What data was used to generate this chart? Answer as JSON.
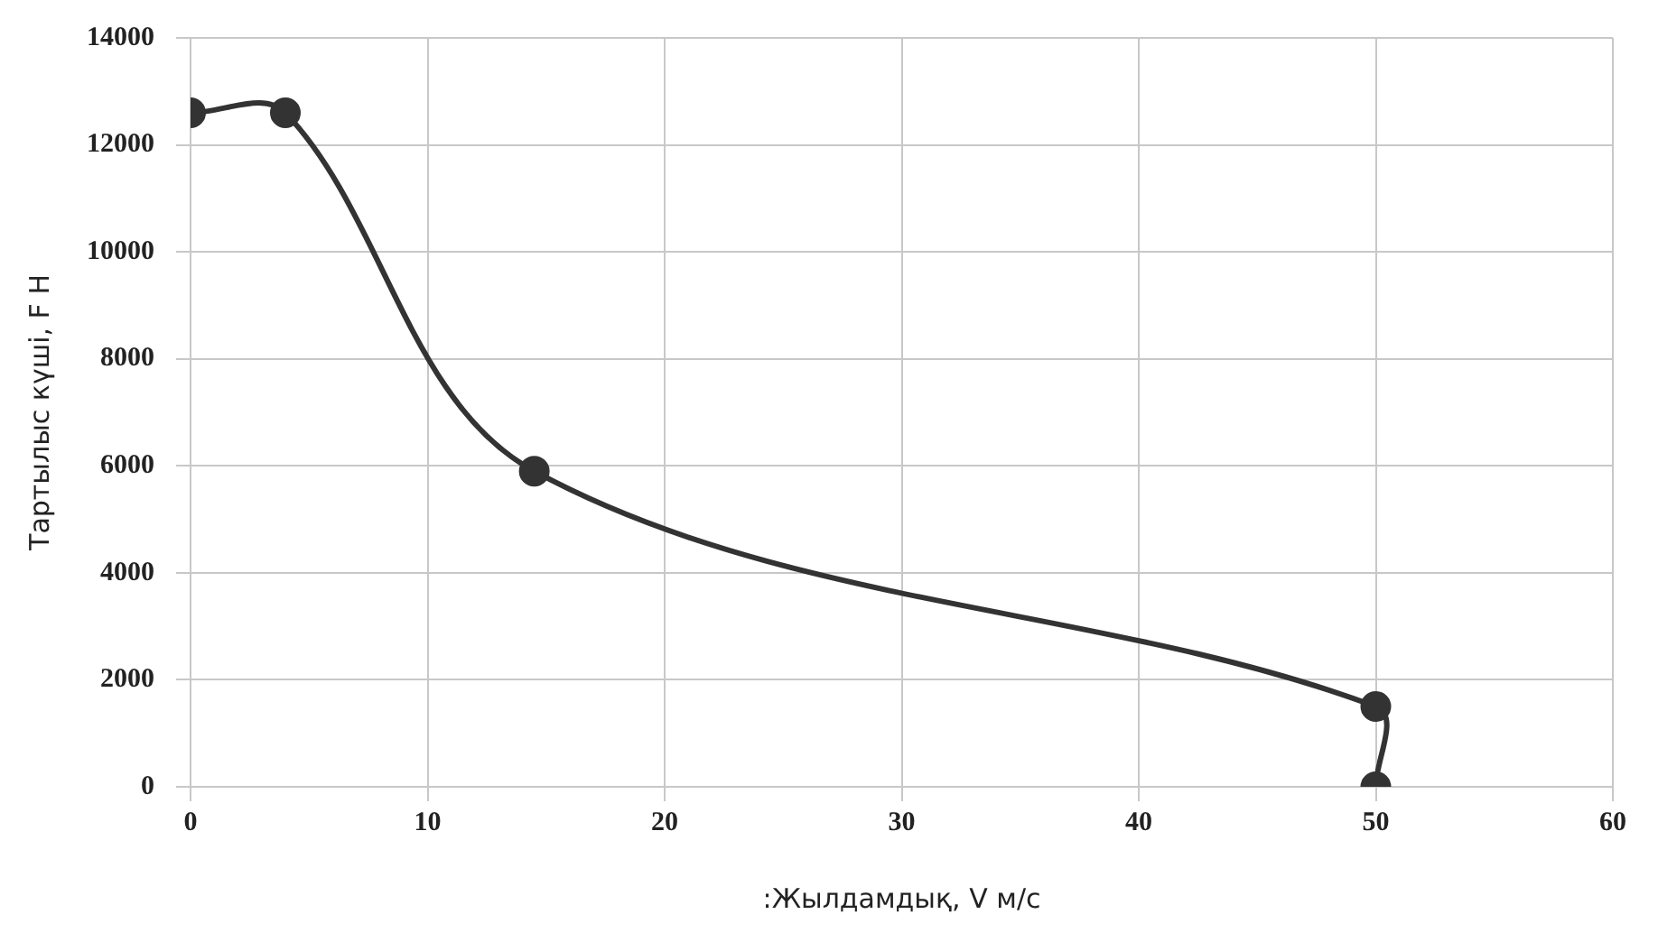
{
  "chart_data": {
    "type": "line",
    "xlabel": ":Жылдамдық, V м/с",
    "ylabel": "Тартылыс күші, F H",
    "x": [
      0,
      4,
      14.5,
      50,
      50
    ],
    "series": [
      {
        "color": "#333333",
        "values": [
          12600,
          12600,
          5900,
          1500,
          0
        ]
      }
    ],
    "xlim": [
      0,
      60
    ],
    "xticks": [
      0,
      10,
      20,
      30,
      40,
      50,
      60
    ],
    "ylim": [
      0,
      14000
    ],
    "yticks": [
      0,
      2000,
      4000,
      6000,
      8000,
      10000,
      12000,
      14000
    ],
    "grid": true,
    "marker": "circle",
    "line_style": "solid"
  }
}
